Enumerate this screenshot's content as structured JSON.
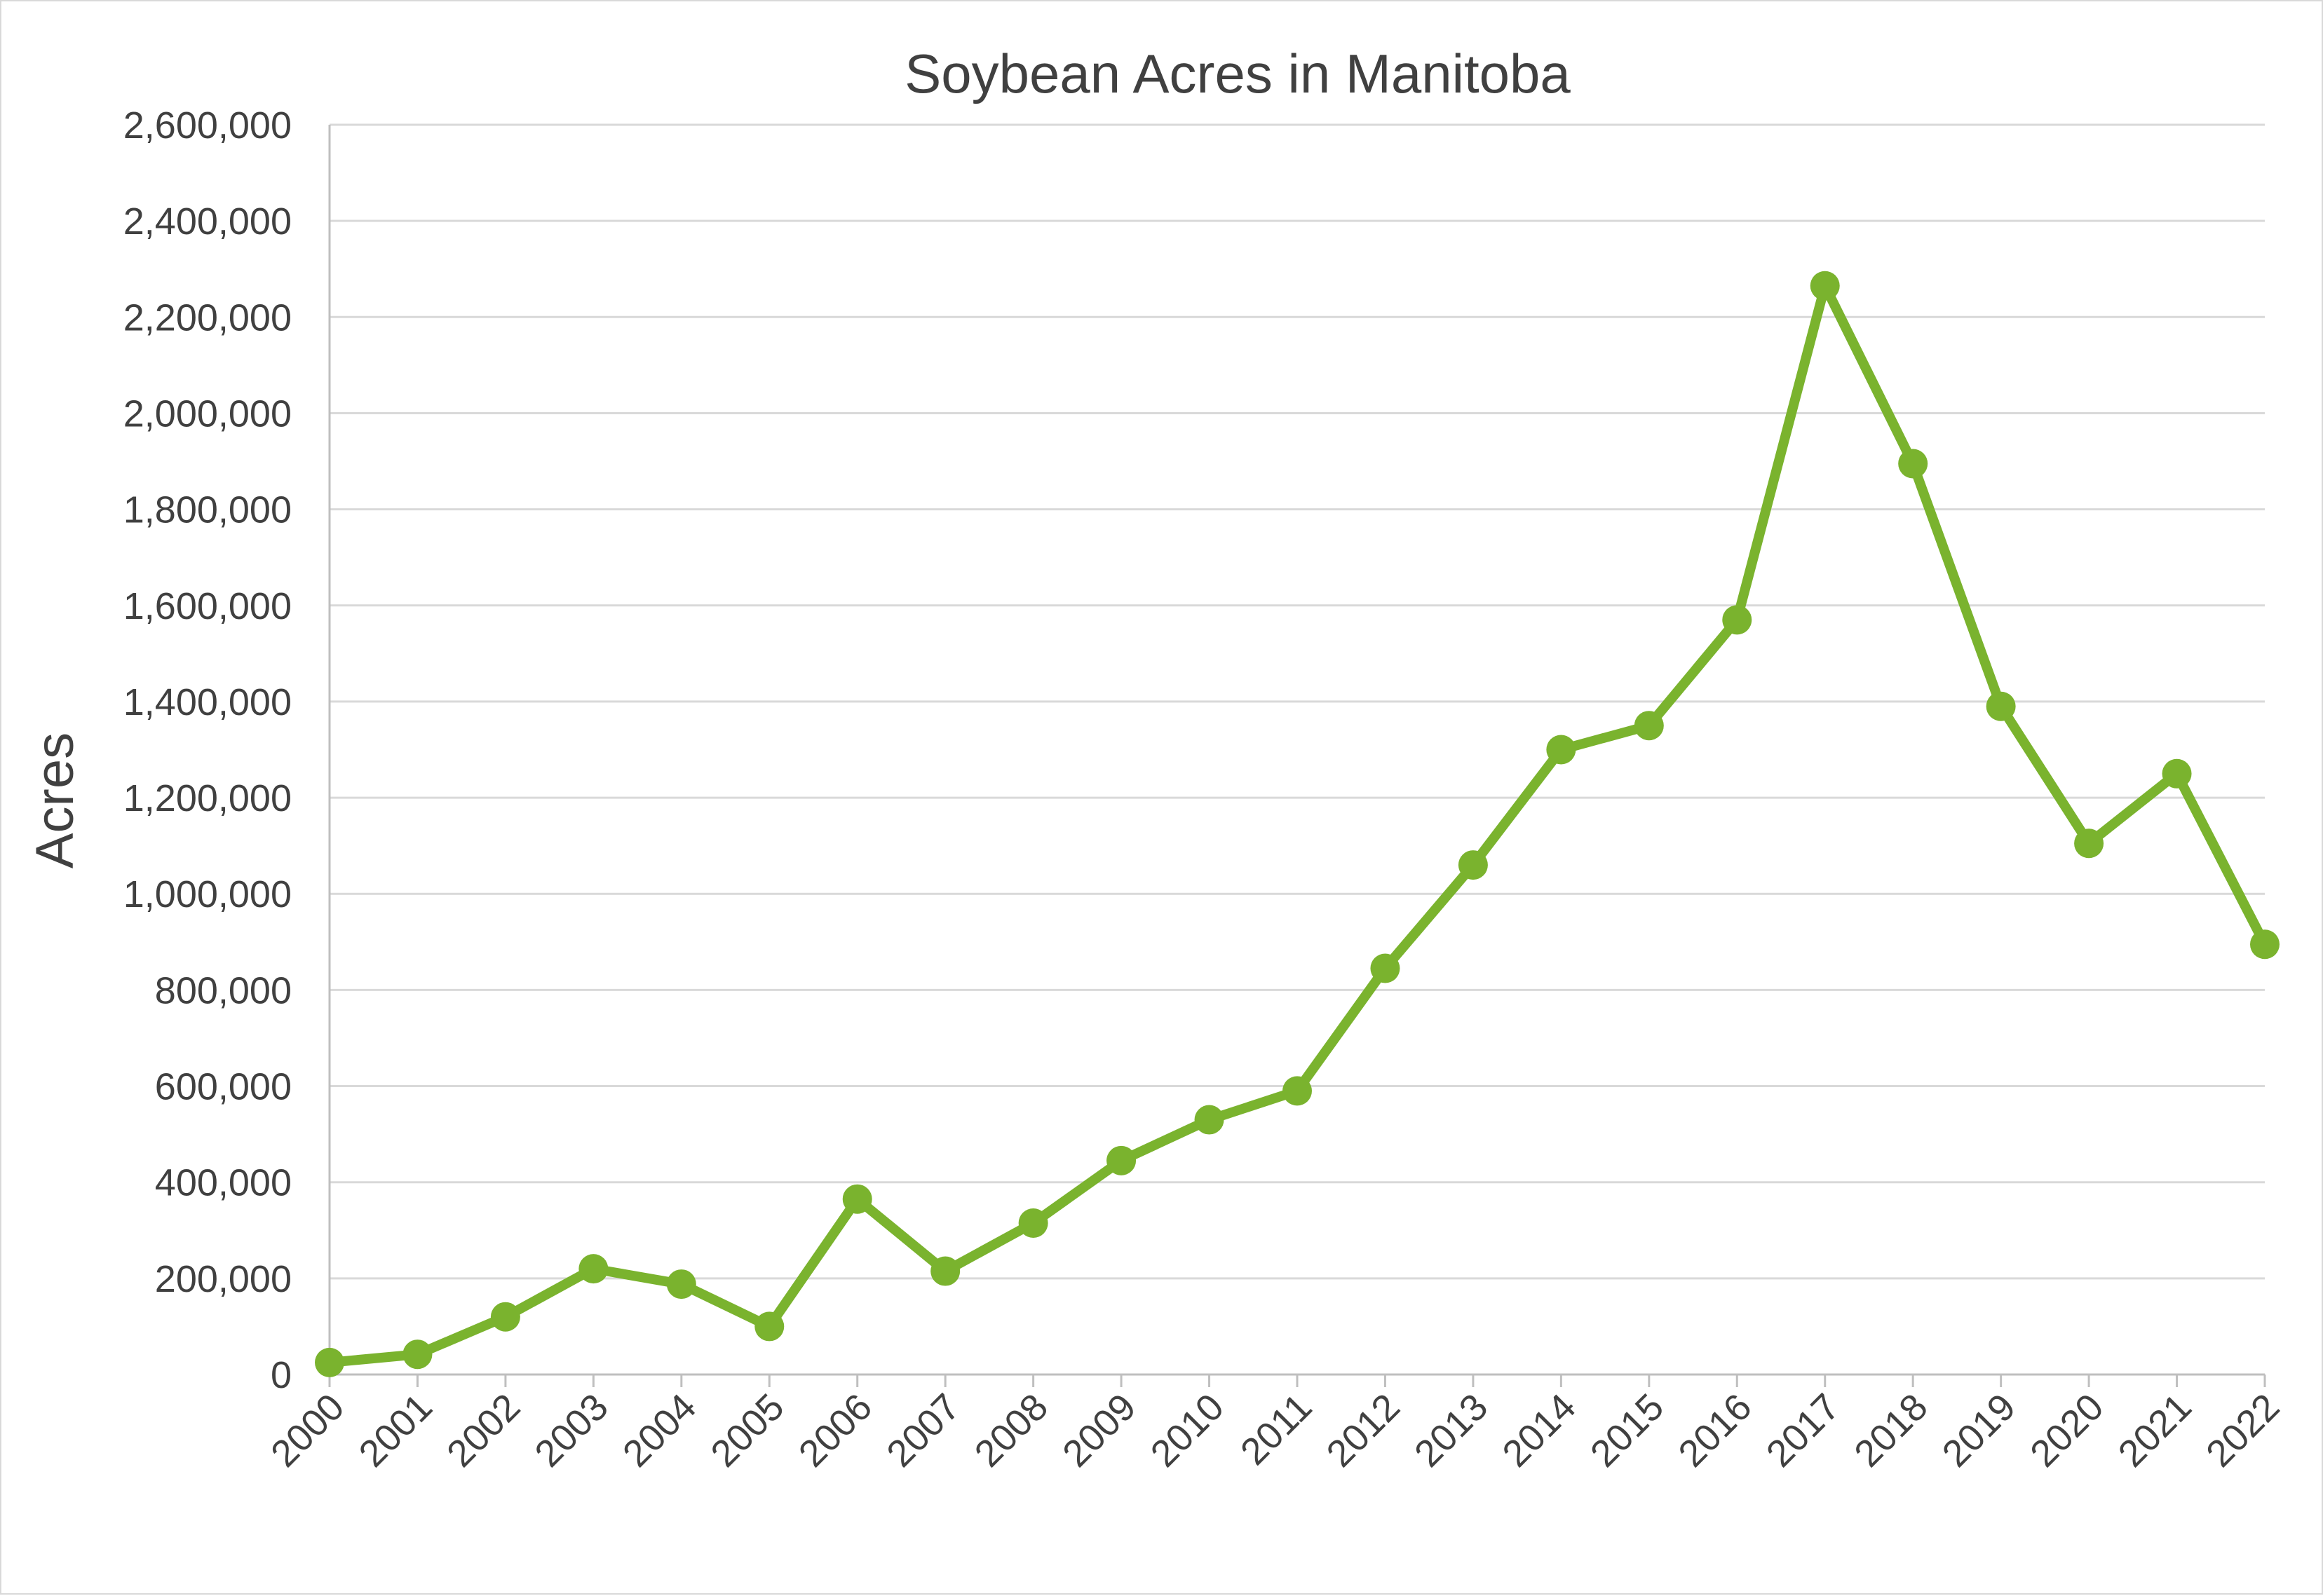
{
  "chart_data": {
    "type": "line",
    "title": "Soybean Acres in Manitoba",
    "xlabel": "",
    "ylabel": "Acres",
    "ylim": [
      0,
      2600000
    ],
    "yticks": [
      0,
      200000,
      400000,
      600000,
      800000,
      1000000,
      1200000,
      1400000,
      1600000,
      1800000,
      2000000,
      2200000,
      2400000,
      2600000
    ],
    "ytick_labels": [
      "0",
      "200,000",
      "400,000",
      "600,000",
      "800,000",
      "1,000,000",
      "1,200,000",
      "1,400,000",
      "1,600,000",
      "1,800,000",
      "2,000,000",
      "2,200,000",
      "2,400,000",
      "2,600,000"
    ],
    "grid": true,
    "legend": "none",
    "categories": [
      "2000",
      "2001",
      "2002",
      "2003",
      "2004",
      "2005",
      "2006",
      "2007",
      "2008",
      "2009",
      "2010",
      "2011",
      "2012",
      "2013",
      "2014",
      "2015",
      "2016",
      "2017",
      "2018",
      "2019",
      "2020",
      "2021",
      "2022"
    ],
    "series": [
      {
        "color": "#7ab32e",
        "values": [
          25000,
          42000,
          120000,
          220000,
          188000,
          100000,
          365000,
          215000,
          315000,
          445000,
          530000,
          590000,
          845000,
          1060000,
          1300000,
          1350000,
          1570000,
          2265000,
          1895000,
          1390000,
          1105000,
          1250000,
          895000
        ]
      }
    ]
  }
}
